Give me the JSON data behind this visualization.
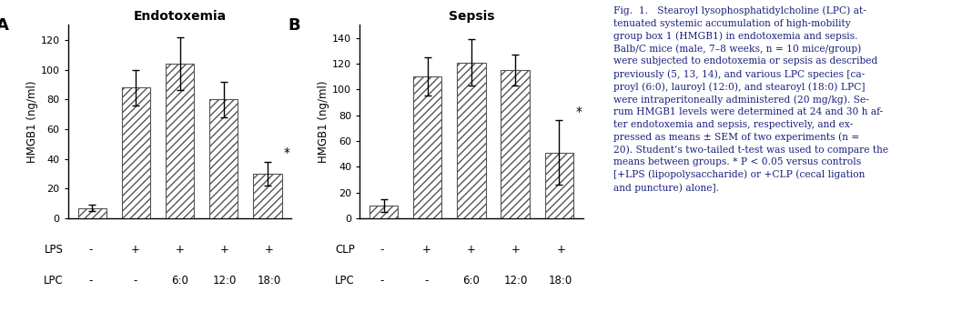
{
  "panel_A": {
    "title": "Endotoxemia",
    "label": "A",
    "bar_values": [
      7,
      88,
      104,
      80,
      30
    ],
    "bar_errors": [
      2,
      12,
      18,
      12,
      8
    ],
    "ylim": [
      0,
      130
    ],
    "yticks": [
      0,
      20,
      40,
      60,
      80,
      100,
      120
    ],
    "ylabel": "HMGB1 (ng/ml)",
    "row1_label": "LPS",
    "row2_label": "LPC",
    "row1_vals": [
      "-",
      "+",
      "+",
      "+",
      "+"
    ],
    "row2_vals": [
      "-",
      "-",
      "6:0",
      "12:0",
      "18:0"
    ],
    "star_index": 4
  },
  "panel_B": {
    "title": "Sepsis",
    "label": "B",
    "bar_values": [
      10,
      110,
      121,
      115,
      51
    ],
    "bar_errors": [
      5,
      15,
      18,
      12,
      25
    ],
    "ylim": [
      0,
      150
    ],
    "yticks": [
      0,
      20,
      40,
      60,
      80,
      100,
      120,
      140
    ],
    "ylabel": "HMGB1 (ng/ml)",
    "row1_label": "CLP",
    "row2_label": "LPC",
    "row1_vals": [
      "-",
      "+",
      "+",
      "+",
      "+"
    ],
    "row2_vals": [
      "-",
      "-",
      "6:0",
      "12:0",
      "18:0"
    ],
    "star_index": 4
  },
  "hatch_pattern": "////",
  "bar_color": "white",
  "bar_edgecolor": "#555555",
  "background_color": "white",
  "text_color": "#1a237e",
  "caption": "Fig.  1.   Stearoyl lysophosphatidylcholine (LPC) at-\ntenuated systemic accumulation of high-mobility\ngroup box 1 (HMGB1) in endotoxemia and sepsis.\nBalb/C mice (male, 7–8 weeks, n = 10 mice/group)\nwere subjected to endotoxemia or sepsis as described\npreviously (5, 13, 14), and various LPC species [ca-\nproyl (6:0), lauroyl (12:0), and stearoyl (18:0) LPC]\nwere intraperitoneally administered (20 mg/kg). Se-\nrum HMGB1 levels were determined at 24 and 30 h af-\nter endotoxemia and sepsis, respectively, and ex-\npressed as means ± SEM of two experiments (n =\n20). Student’s two-tailed t-test was used to compare the\nmeans between groups. * P < 0.05 versus controls\n[+LPS (lipopolysaccharide) or +CLP (cecal ligation\nand puncture) alone]."
}
